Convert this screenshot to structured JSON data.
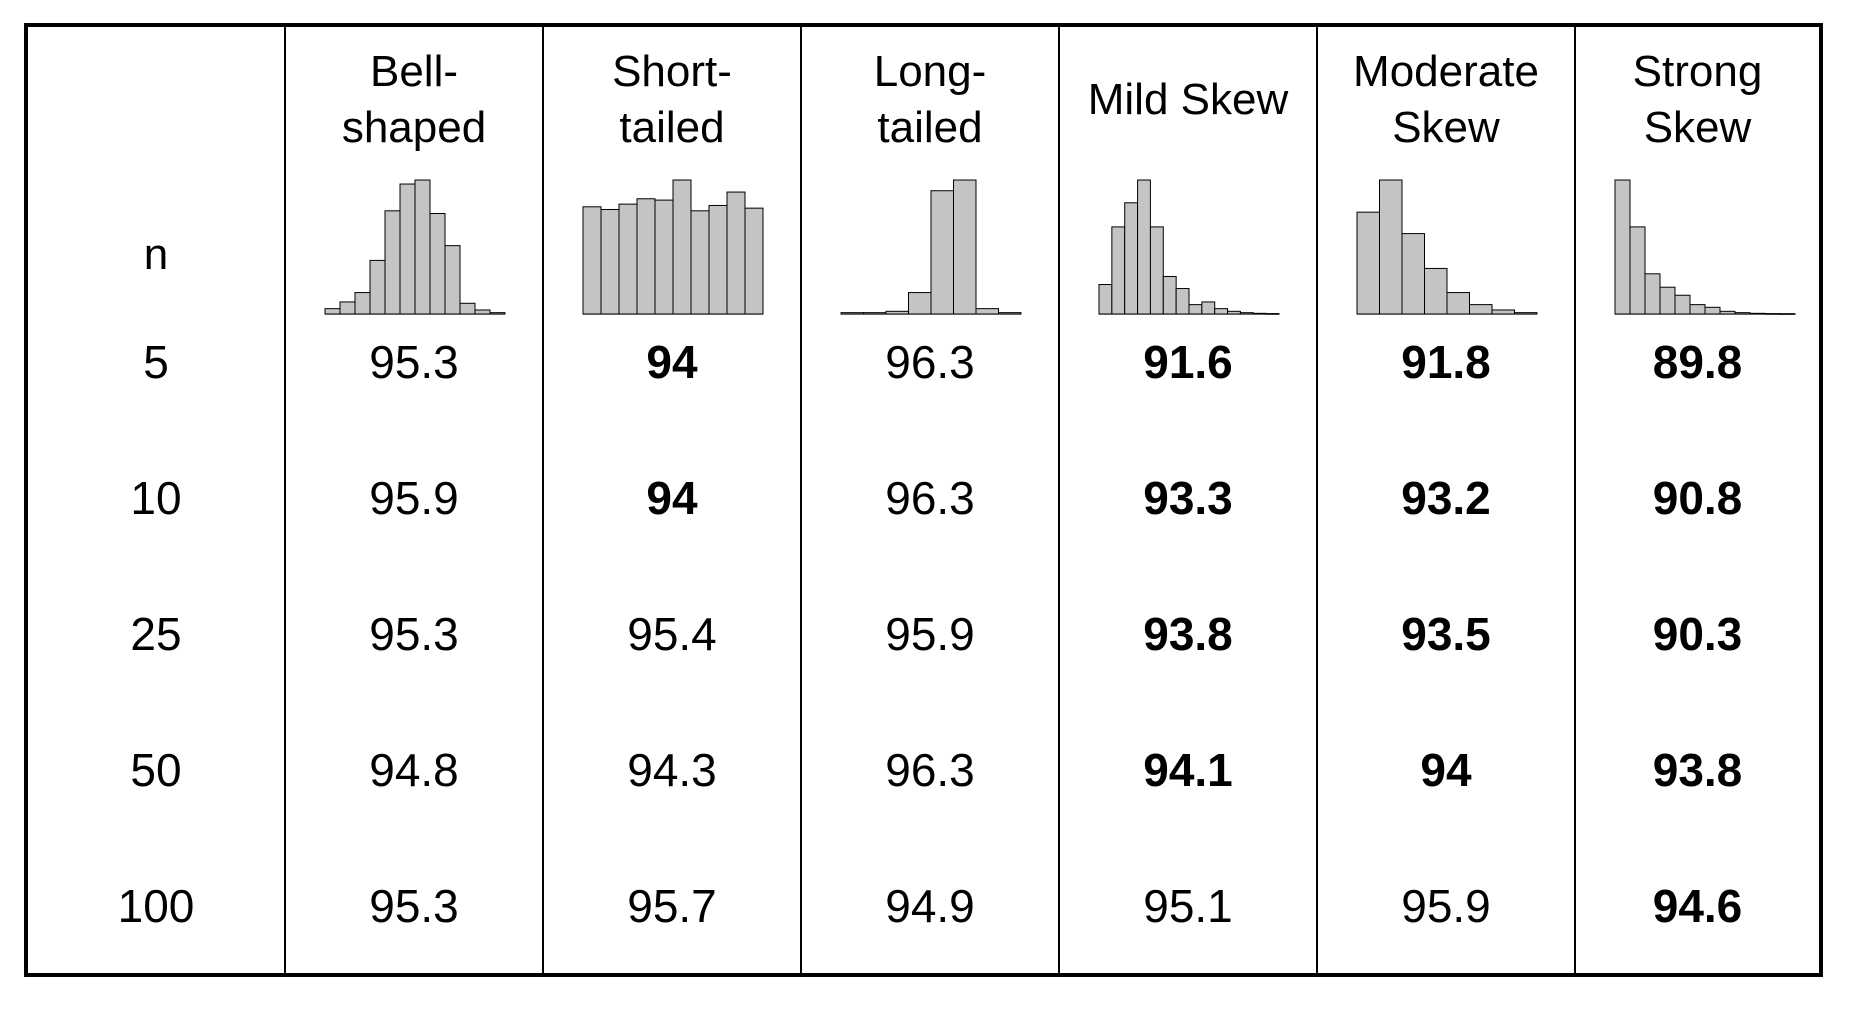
{
  "chart_data": {
    "type": "table",
    "row_header": "n",
    "columns": [
      {
        "name": "Bell-\nshaped",
        "histogram": [
          0.04,
          0.09,
          0.16,
          0.4,
          0.77,
          0.97,
          1.0,
          0.75,
          0.51,
          0.08,
          0.03,
          0.01
        ]
      },
      {
        "name": "Short-\ntailed",
        "histogram": [
          0.8,
          0.78,
          0.82,
          0.86,
          0.85,
          1.0,
          0.77,
          0.81,
          0.91,
          0.79
        ]
      },
      {
        "name": "Long-\ntailed",
        "histogram": [
          0.01,
          0.01,
          0.02,
          0.16,
          0.92,
          1.0,
          0.04,
          0.01
        ]
      },
      {
        "name": "Mild Skew",
        "histogram": [
          0.22,
          0.65,
          0.83,
          1.0,
          0.65,
          0.28,
          0.19,
          0.07,
          0.09,
          0.04,
          0.02,
          0.01,
          0.005,
          0.003
        ]
      },
      {
        "name": "Moderate\nSkew",
        "histogram": [
          0.76,
          1.0,
          0.6,
          0.34,
          0.16,
          0.07,
          0.03,
          0.01
        ]
      },
      {
        "name": "Strong\nSkew",
        "histogram": [
          1.0,
          0.65,
          0.3,
          0.2,
          0.14,
          0.07,
          0.05,
          0.02,
          0.01,
          0.005,
          0.003,
          0.002
        ]
      }
    ],
    "rows": [
      {
        "n": "5",
        "values": [
          "95.3",
          "94",
          "96.3",
          "91.6",
          "91.8",
          "89.8"
        ],
        "bold": [
          false,
          true,
          false,
          true,
          true,
          true
        ]
      },
      {
        "n": "10",
        "values": [
          "95.9",
          "94",
          "96.3",
          "93.3",
          "93.2",
          "90.8"
        ],
        "bold": [
          false,
          true,
          false,
          true,
          true,
          true
        ]
      },
      {
        "n": "25",
        "values": [
          "95.3",
          "95.4",
          "95.9",
          "93.8",
          "93.5",
          "90.3"
        ],
        "bold": [
          false,
          false,
          false,
          true,
          true,
          true
        ]
      },
      {
        "n": "50",
        "values": [
          "94.8",
          "94.3",
          "96.3",
          "94.1",
          "94",
          "93.8"
        ],
        "bold": [
          false,
          false,
          false,
          true,
          true,
          true
        ]
      },
      {
        "n": "100",
        "values": [
          "95.3",
          "95.7",
          "94.9",
          "95.1",
          "95.9",
          "94.6"
        ],
        "bold": [
          false,
          false,
          false,
          false,
          false,
          true
        ]
      }
    ],
    "bar_fill": "#c4c4c4",
    "bar_stroke": "#000000"
  }
}
